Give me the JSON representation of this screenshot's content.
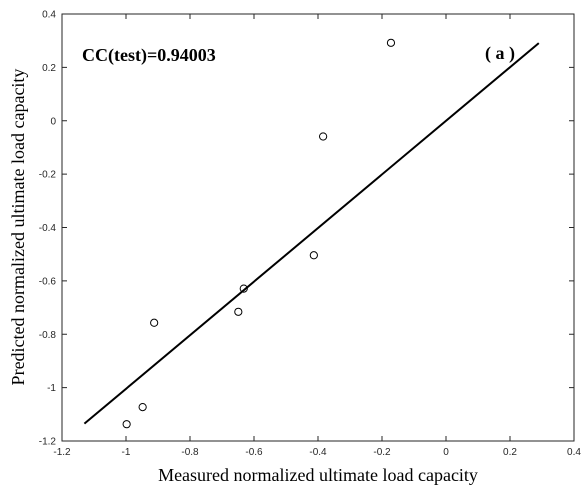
{
  "chart_data": {
    "type": "scatter",
    "xlabel": "Measured normalized ultimate load capacity",
    "ylabel": "Predicted normalized ultimate load capacity",
    "xlim": [
      -1.2,
      0.4
    ],
    "ylim": [
      -1.2,
      0.4
    ],
    "xticks": [
      "-1.2",
      "-1",
      "-0.8",
      "-0.6",
      "-0.4",
      "-0.2",
      "0",
      "0.2",
      "0.4"
    ],
    "yticks": [
      "-1.2",
      "-1",
      "-0.8",
      "-0.6",
      "-0.4",
      "-0.2",
      "0",
      "0.2",
      "0.4"
    ],
    "grid": false,
    "annotations": {
      "cc_text": "CC(test)=0.94003",
      "panel_label": "( a )"
    },
    "series": [
      {
        "type": "scatter",
        "marker": "open-circle",
        "x": [
          -0.998,
          -0.948,
          -0.912,
          -0.649,
          -0.632,
          -0.413,
          -0.384,
          -0.172
        ],
        "y": [
          -1.137,
          -1.073,
          -0.757,
          -0.716,
          -0.629,
          -0.504,
          -0.059,
          0.292
        ]
      },
      {
        "type": "line",
        "x": [
          -1.13,
          0.29
        ],
        "y": [
          -1.135,
          0.291
        ]
      }
    ]
  }
}
